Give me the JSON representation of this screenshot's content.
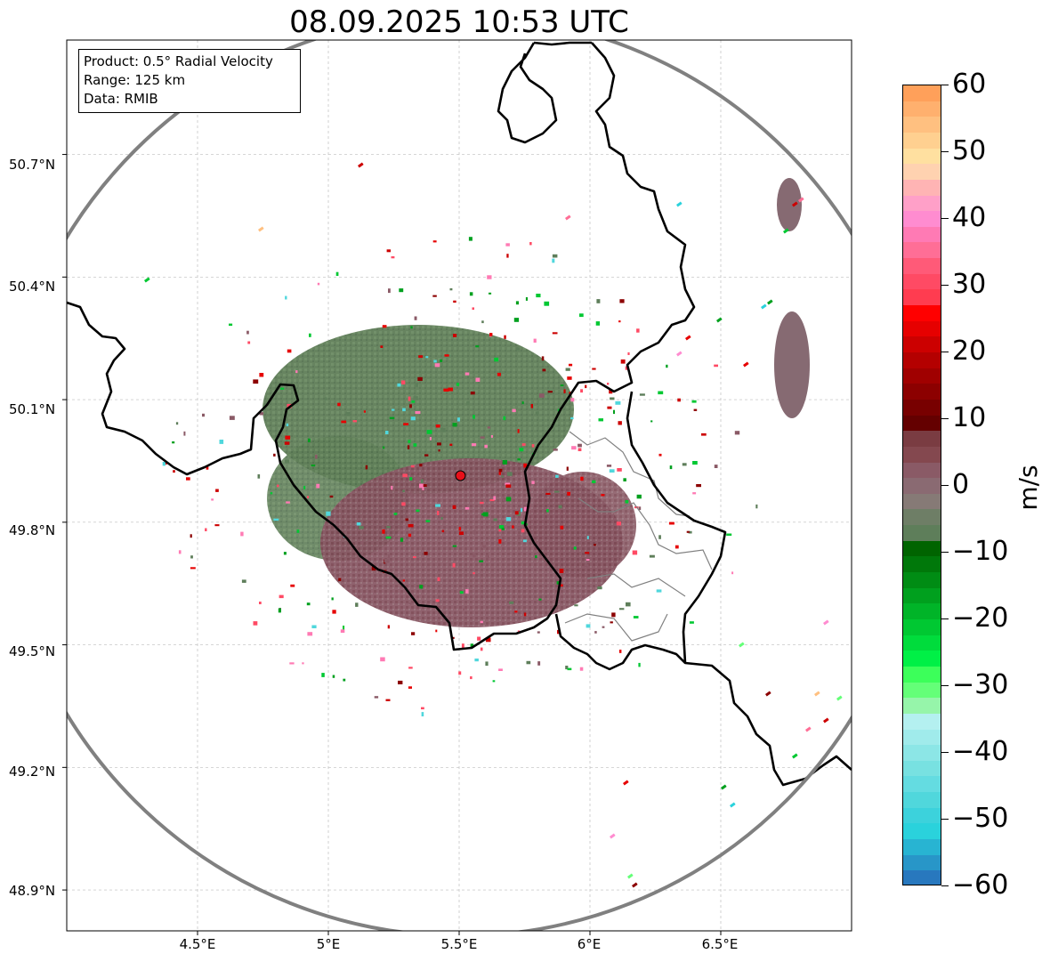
{
  "title": "08.09.2025 10:53 UTC",
  "info": {
    "product": "Product: 0.5° Radial Velocity",
    "range": "Range: 125 km",
    "source": "Data: RMIB"
  },
  "axes": {
    "lat_labels": [
      "50.7°N",
      "50.4°N",
      "50.1°N",
      "49.8°N",
      "49.5°N",
      "49.2°N",
      "48.9°N"
    ],
    "lon_labels": [
      "4.5°E",
      "5°E",
      "5.5°E",
      "6°E",
      "6.5°E"
    ],
    "lat_values": [
      50.7,
      50.4,
      50.1,
      49.8,
      49.5,
      49.2,
      48.9
    ],
    "lon_values": [
      4.5,
      5.0,
      5.5,
      6.0,
      6.5
    ],
    "lon_range": [
      4.0,
      7.0
    ],
    "lat_range": [
      48.8,
      50.98
    ],
    "grid": true
  },
  "radar": {
    "lat": 49.914,
    "lon": 5.505,
    "range_km": 125,
    "marker_color": "#e8101a"
  },
  "colorbar": {
    "unit": "m/s",
    "min": -60,
    "max": 60,
    "tick_values": [
      60,
      50,
      40,
      30,
      20,
      10,
      0,
      -10,
      -20,
      -30,
      -40,
      -50,
      -60
    ],
    "tick_labels": [
      "60",
      "50",
      "40",
      "30",
      "20",
      "10",
      "0",
      "−10",
      "−20",
      "−30",
      "−40",
      "−50",
      "−60"
    ],
    "colors": [
      "#ffa05a",
      "#ffb06e",
      "#ffc080",
      "#ffd090",
      "#ffe0a0",
      "#ffd2b0",
      "#ffb4b4",
      "#ffa0c8",
      "#ff8cd0",
      "#ff7ab4",
      "#ff6e96",
      "#ff5a78",
      "#ff4a64",
      "#ff3c50",
      "#ff0000",
      "#e60000",
      "#cc0000",
      "#b40000",
      "#a00000",
      "#8c0000",
      "#780000",
      "#640000",
      "#7a3c42",
      "#84484f",
      "#8a5a66",
      "#8a6a72",
      "#867a76",
      "#6e7e66",
      "#5e7e5a",
      "#006400",
      "#00780a",
      "#008c14",
      "#00a01e",
      "#00b428",
      "#00c832",
      "#00dc3c",
      "#00f046",
      "#3cff5a",
      "#64ff78",
      "#96f5aa",
      "#b4f0f0",
      "#a0ebeb",
      "#8ce6e6",
      "#78e1e1",
      "#64dce1",
      "#50d7dc",
      "#3cd2dc",
      "#2ad2dc",
      "#28b4d2",
      "#2896c8",
      "#2878be"
    ]
  }
}
